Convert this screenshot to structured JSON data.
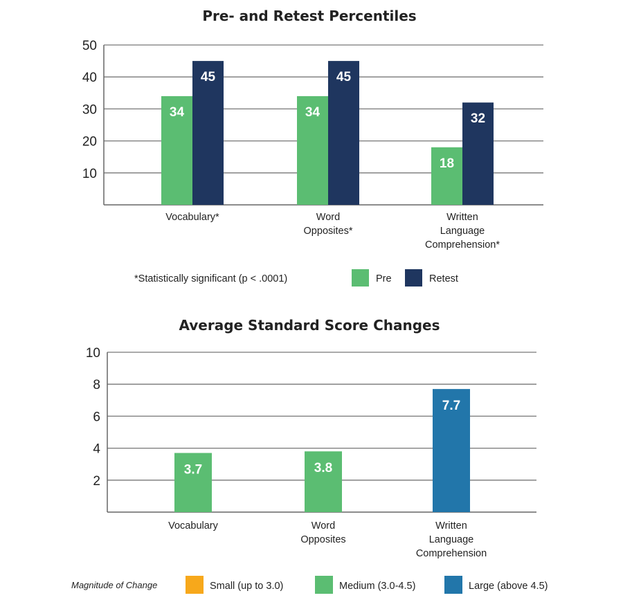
{
  "colors": {
    "pre": "#5bbd72",
    "retest": "#1f365f",
    "small": "#f7a81b",
    "medium": "#5bbd72",
    "large": "#2276aa",
    "grid": "#555555"
  },
  "chart_data": [
    {
      "type": "bar",
      "title": "Pre- and Retest Percentiles",
      "categories": [
        [
          "Vocabulary*"
        ],
        [
          "Word",
          "Opposites*"
        ],
        [
          "Written",
          "Language",
          "Comprehension*"
        ]
      ],
      "series": [
        {
          "name": "Pre",
          "values": [
            34,
            34,
            18
          ],
          "labels": [
            "34",
            "34",
            "18"
          ]
        },
        {
          "name": "Retest",
          "values": [
            45,
            45,
            32
          ],
          "labels": [
            "45",
            "45",
            "32"
          ]
        }
      ],
      "ylim": [
        0,
        50
      ],
      "yticks": [
        "10",
        "20",
        "30",
        "40",
        "50"
      ],
      "grid": true,
      "footnote": "*Statistically significant (p < .0001)",
      "legend": [
        "Pre",
        "Retest"
      ]
    },
    {
      "type": "bar",
      "title": "Average Standard Score Changes",
      "categories": [
        [
          "Vocabulary"
        ],
        [
          "Word",
          "Opposites"
        ],
        [
          "Written",
          "Language",
          "Comprehension"
        ]
      ],
      "values": [
        3.7,
        3.8,
        7.7
      ],
      "labels": [
        "3.7",
        "3.8",
        "7.7"
      ],
      "magnitudes": [
        "medium",
        "medium",
        "large"
      ],
      "ylim": [
        0,
        10
      ],
      "yticks": [
        "2",
        "4",
        "6",
        "8",
        "10"
      ],
      "grid": true,
      "legend_title": "Magnitude of Change",
      "legend": [
        {
          "key": "small",
          "label": "Small (up to 3.0)"
        },
        {
          "key": "medium",
          "label": "Medium (3.0-4.5)"
        },
        {
          "key": "large",
          "label": "Large (above 4.5)"
        }
      ]
    }
  ]
}
